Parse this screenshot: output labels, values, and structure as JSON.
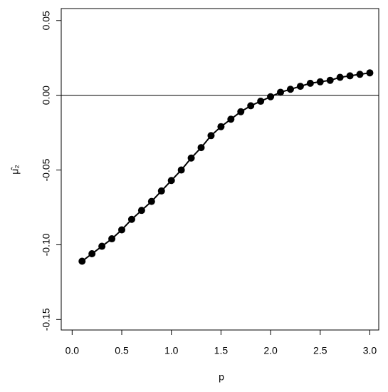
{
  "chart_data": {
    "type": "line",
    "xlabel": "p",
    "ylabel": "μ̂₂",
    "x": [
      0.1,
      0.2,
      0.3,
      0.4,
      0.5,
      0.6,
      0.7,
      0.8,
      0.9,
      1.0,
      1.1,
      1.2,
      1.3,
      1.4,
      1.5,
      1.6,
      1.7,
      1.8,
      1.9,
      2.0,
      2.1,
      2.2,
      2.3,
      2.4,
      2.5,
      2.6,
      2.7,
      2.8,
      2.9,
      3.0
    ],
    "series": [
      {
        "color": "#000000",
        "values": [
          -0.111,
          -0.106,
          -0.101,
          -0.096,
          -0.09,
          -0.083,
          -0.077,
          -0.071,
          -0.064,
          -0.057,
          -0.05,
          -0.042,
          -0.035,
          -0.027,
          -0.021,
          -0.016,
          -0.011,
          -0.007,
          -0.004,
          -0.001,
          0.002,
          0.004,
          0.006,
          0.008,
          0.009,
          0.01,
          0.012,
          0.013,
          0.014,
          0.015
        ]
      }
    ],
    "hline": 0,
    "xlim": [
      -0.11,
      3.09
    ],
    "ylim": [
      -0.157,
      0.058
    ],
    "xticks": [
      {
        "value": 0,
        "label": "0.0"
      },
      0.5,
      {
        "value": 1,
        "label": "1.0"
      },
      1.5,
      {
        "value": 2,
        "label": "2.0"
      },
      2.5,
      {
        "value": 3,
        "label": "3.0"
      }
    ],
    "yticks": [
      {
        "value": -0.15,
        "label": "-0.15"
      },
      {
        "value": -0.1,
        "label": "-0.10"
      },
      -0.05,
      {
        "value": 0,
        "label": "0.00"
      },
      0.05
    ]
  }
}
